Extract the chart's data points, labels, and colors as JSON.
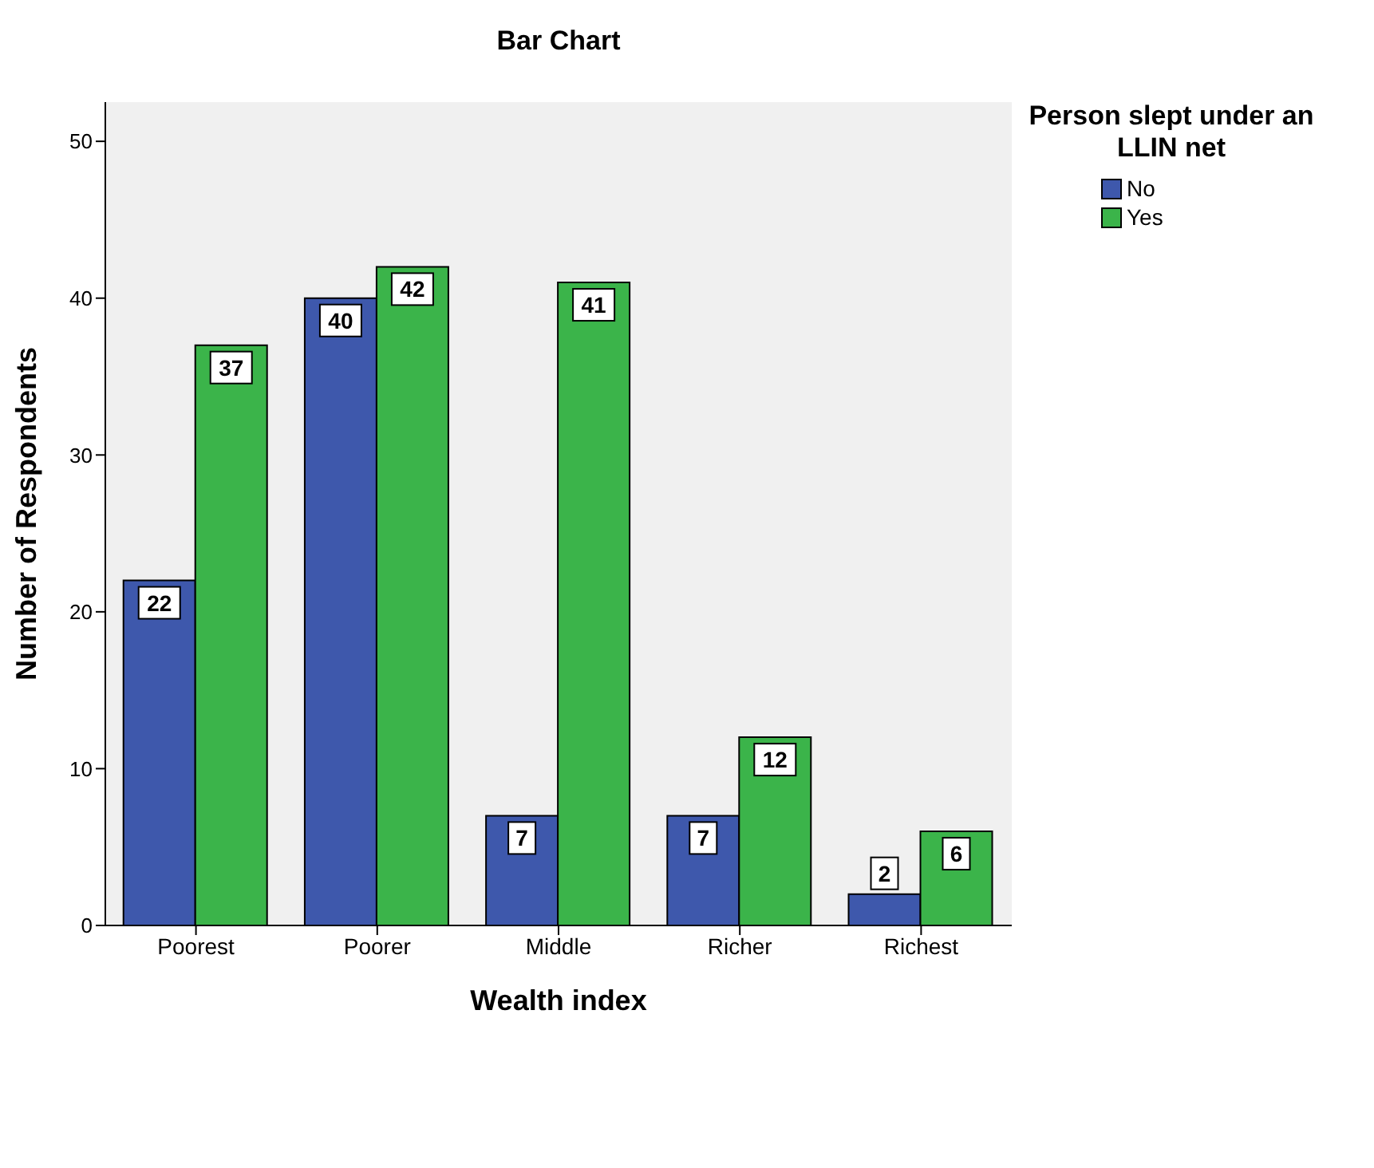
{
  "chart_data": {
    "type": "bar",
    "title": "Bar Chart",
    "xlabel": "Wealth index",
    "ylabel": "Number of Respondents",
    "legend_title": "Person slept under an LLIN net",
    "categories": [
      "Poorest",
      "Poorer",
      "Middle",
      "Richer",
      "Richest"
    ],
    "series": [
      {
        "name": "No",
        "color": "#3e58ac",
        "values": [
          22,
          40,
          7,
          7,
          2
        ]
      },
      {
        "name": "Yes",
        "color": "#3bb44a",
        "values": [
          37,
          42,
          41,
          12,
          6
        ]
      }
    ],
    "ylim": [
      0,
      52.5
    ],
    "yticks": [
      0,
      10,
      20,
      30,
      40,
      50
    ],
    "grid": false,
    "legend": "top right",
    "data_labels": true
  }
}
